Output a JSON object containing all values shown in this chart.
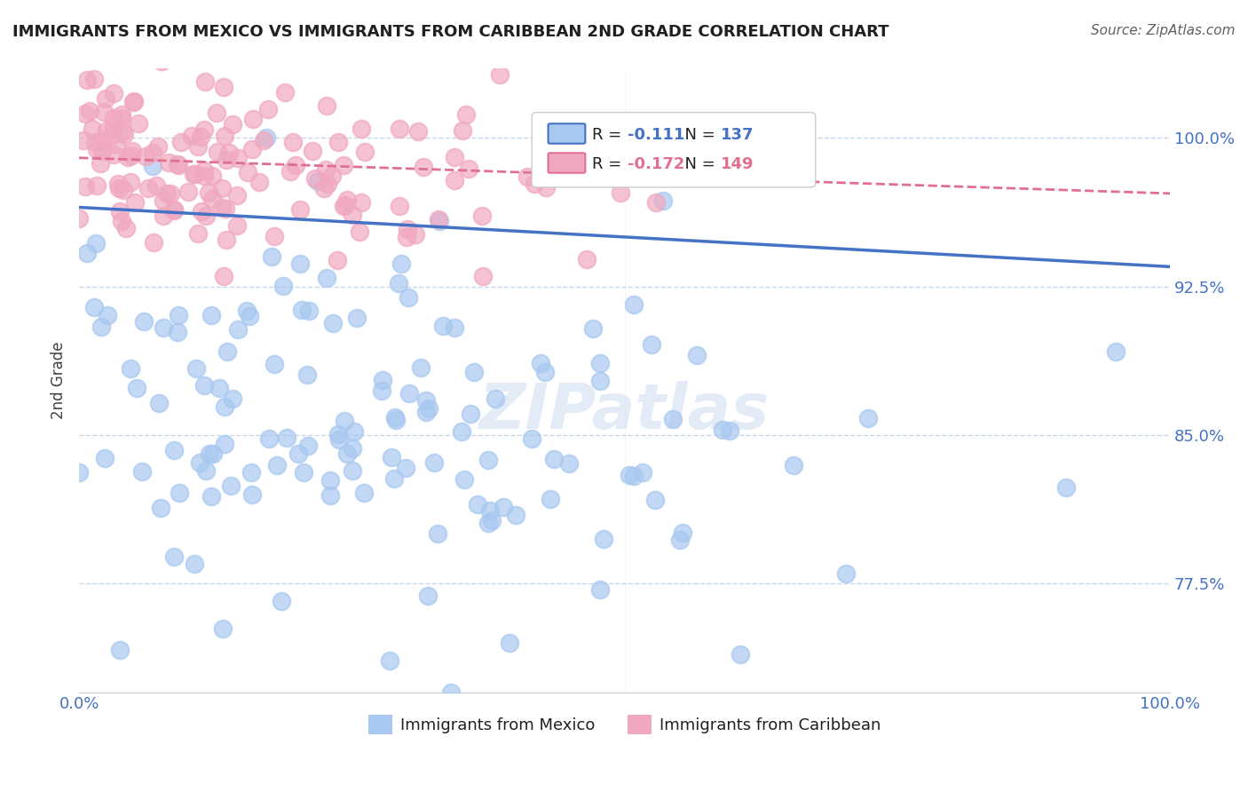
{
  "title": "IMMIGRANTS FROM MEXICO VS IMMIGRANTS FROM CARIBBEAN 2ND GRADE CORRELATION CHART",
  "source": "Source: ZipAtlas.com",
  "xlabel_bottom": "",
  "ylabel": "2nd Grade",
  "x_min": 0.0,
  "x_max": 1.0,
  "y_min": 0.72,
  "y_max": 1.035,
  "yticks": [
    0.775,
    0.85,
    0.925,
    1.0
  ],
  "xticks": [
    0.0,
    1.0
  ],
  "xtick_labels": [
    "0.0%",
    "100.0%"
  ],
  "ytick_labels": [
    "77.5%",
    "85.0%",
    "92.5%",
    "100.0%"
  ],
  "mexico_R": -0.111,
  "mexico_N": 137,
  "caribbean_R": -0.172,
  "caribbean_N": 149,
  "mexico_color": "#a8c8f0",
  "caribbean_color": "#f0a8c0",
  "mexico_line_color": "#4472c4",
  "caribbean_line_color": "#e07090",
  "legend_label_mexico": "Immigrants from Mexico",
  "legend_label_caribbean": "Immigrants from Caribbean",
  "watermark": "ZIPatlas",
  "background_color": "#ffffff",
  "grid_color": "#c8d8e8",
  "title_color": "#202020",
  "axis_label_color": "#4472c4",
  "tick_label_color": "#4472c4"
}
